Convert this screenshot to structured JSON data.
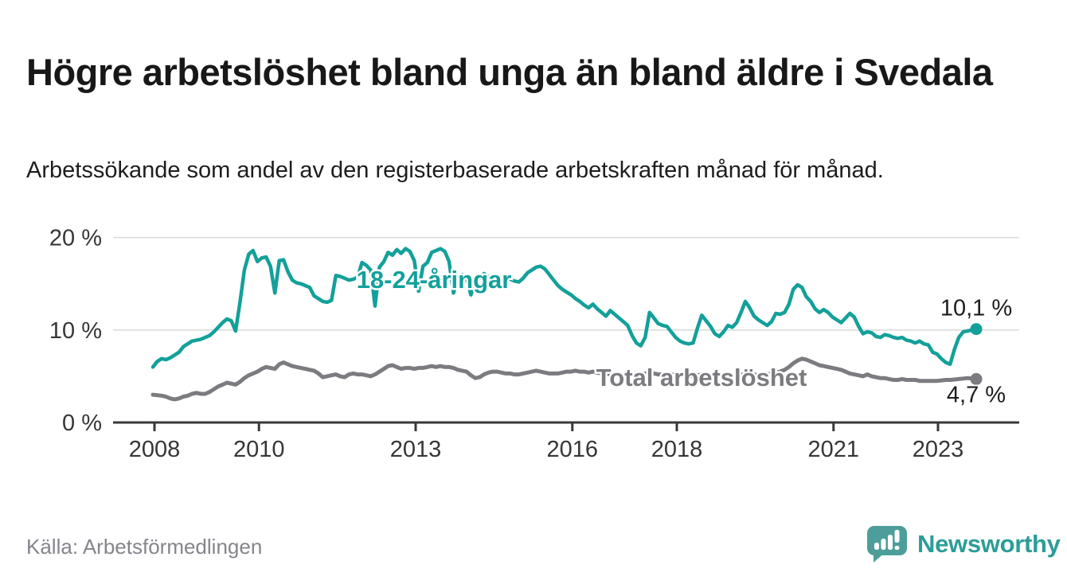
{
  "header": {
    "title": "Högre arbetslöshet bland unga än bland äldre i Svedala",
    "subtitle": "Arbetssökande som andel av den registerbaserade arbetskraften månad för månad."
  },
  "footer": {
    "source": "Källa: Arbetsförmedlingen",
    "brand_name": "Newsworthy",
    "brand_icon": "bar-chart-speech-bubble-icon"
  },
  "colors": {
    "youth_line": "#13a09a",
    "total_line": "#7b7b80",
    "axis": "#383838",
    "gridline": "#dbdbdb",
    "tick_label": "#363636",
    "value_label": "#1d1d1d",
    "logo_box": "#4d9e9b",
    "logo_text": "#2b9d98"
  },
  "chart_data": {
    "type": "line",
    "title": "Högre arbetslöshet bland unga än bland äldre i Svedala",
    "subtitle": "Arbetssökande som andel av den registerbaserade arbetskraften månad för månad.",
    "frequency": "monthly",
    "x_start": "2008-01",
    "x_end": "2023-10",
    "xlabel": "",
    "ylabel": "",
    "ylim": [
      0,
      21.5
    ],
    "grid": "horizontal",
    "legend_position": "inline-labels",
    "x_tick_years": [
      2008,
      2010,
      2013,
      2016,
      2018,
      2021,
      2023
    ],
    "y_ticks": [
      {
        "value": 0,
        "label": "0 %"
      },
      {
        "value": 10,
        "label": "10 %"
      },
      {
        "value": 20,
        "label": "20 %"
      }
    ],
    "y_gridlines": [
      10,
      20
    ],
    "series": [
      {
        "name": "18-24-åringar",
        "color": "#13a09a",
        "end_label": "10,1 %",
        "last_value": 10.1,
        "values": [
          6.0,
          6.6,
          6.9,
          6.8,
          7.0,
          7.3,
          7.6,
          8.2,
          8.5,
          8.8,
          8.9,
          9.0,
          9.2,
          9.4,
          9.8,
          10.3,
          10.8,
          11.2,
          11.0,
          9.9,
          13.0,
          16.5,
          18.2,
          18.6,
          17.4,
          17.8,
          17.9,
          16.9,
          14.0,
          17.5,
          17.6,
          16.3,
          15.4,
          15.1,
          15.0,
          14.8,
          14.6,
          13.7,
          13.4,
          13.1,
          13.0,
          13.2,
          15.9,
          15.8,
          15.6,
          15.4,
          15.5,
          15.7,
          17.3,
          17.0,
          16.5,
          12.6,
          16.8,
          17.4,
          18.4,
          18.1,
          18.7,
          18.3,
          18.8,
          18.5,
          17.5,
          14.2,
          16.9,
          17.3,
          18.4,
          18.6,
          18.8,
          18.5,
          17.4,
          14.0,
          15.6,
          16.0,
          15.6,
          13.8,
          15.2,
          15.6,
          16.1,
          15.8,
          15.5,
          14.8,
          15.6,
          15.8,
          15.5,
          15.3,
          15.2,
          15.6,
          16.2,
          16.5,
          16.8,
          16.9,
          16.6,
          16.0,
          15.4,
          14.8,
          14.4,
          14.1,
          13.8,
          13.4,
          13.1,
          12.7,
          12.4,
          12.8,
          12.3,
          11.9,
          11.5,
          12.1,
          11.7,
          11.3,
          10.9,
          10.5,
          9.4,
          8.6,
          8.3,
          9.2,
          11.9,
          11.3,
          10.7,
          10.5,
          10.4,
          9.8,
          9.2,
          8.8,
          8.6,
          8.5,
          8.6,
          10.2,
          11.6,
          11.0,
          10.4,
          9.6,
          9.3,
          9.8,
          10.5,
          10.3,
          10.8,
          11.9,
          13.1,
          12.4,
          11.5,
          11.1,
          10.8,
          10.5,
          10.9,
          11.8,
          11.7,
          11.9,
          12.8,
          14.4,
          14.9,
          14.6,
          13.6,
          13.1,
          12.3,
          11.9,
          12.2,
          11.9,
          11.4,
          11.1,
          10.8,
          11.3,
          11.8,
          11.4,
          10.4,
          9.6,
          9.8,
          9.7,
          9.3,
          9.2,
          9.5,
          9.4,
          9.2,
          9.1,
          9.2,
          8.9,
          8.8,
          8.6,
          8.8,
          8.5,
          8.4,
          7.6,
          7.4,
          6.9,
          6.5,
          6.3,
          7.9,
          9.2,
          9.8,
          9.9,
          10.0,
          10.1
        ]
      },
      {
        "name": "Total arbetslöshet",
        "color": "#7b7b80",
        "end_label": "4,7 %",
        "last_value": 4.7,
        "values": [
          3.0,
          2.95,
          2.9,
          2.8,
          2.6,
          2.5,
          2.6,
          2.8,
          2.9,
          3.1,
          3.2,
          3.1,
          3.1,
          3.3,
          3.6,
          3.9,
          4.1,
          4.3,
          4.2,
          4.1,
          4.4,
          4.8,
          5.1,
          5.3,
          5.5,
          5.8,
          6.0,
          5.9,
          5.8,
          6.3,
          6.5,
          6.3,
          6.1,
          6.0,
          5.9,
          5.8,
          5.7,
          5.6,
          5.3,
          4.9,
          5.0,
          5.1,
          5.2,
          5.0,
          4.9,
          5.2,
          5.3,
          5.2,
          5.2,
          5.1,
          5.0,
          5.2,
          5.5,
          5.8,
          6.1,
          6.2,
          6.0,
          5.8,
          5.9,
          5.9,
          5.8,
          5.9,
          5.9,
          6.0,
          6.1,
          6.0,
          6.1,
          6.0,
          6.0,
          5.9,
          5.7,
          5.6,
          5.5,
          5.1,
          4.8,
          4.9,
          5.2,
          5.4,
          5.5,
          5.5,
          5.4,
          5.3,
          5.3,
          5.2,
          5.2,
          5.3,
          5.4,
          5.5,
          5.6,
          5.5,
          5.4,
          5.3,
          5.3,
          5.3,
          5.4,
          5.5,
          5.5,
          5.6,
          5.5,
          5.5,
          5.4,
          5.5,
          5.4,
          5.3,
          5.2,
          5.3,
          5.3,
          5.2,
          5.2,
          5.1,
          5.2,
          5.3,
          5.2,
          5.3,
          5.4,
          5.3,
          5.2,
          5.2,
          5.3,
          5.2,
          5.2,
          5.1,
          5.0,
          5.1,
          5.0,
          5.1,
          5.2,
          5.1,
          5.0,
          5.0,
          5.1,
          5.0,
          5.1,
          5.0,
          5.1,
          5.2,
          5.2,
          5.1,
          5.2,
          5.1,
          5.1,
          5.2,
          5.3,
          5.4,
          5.5,
          5.7,
          6.0,
          6.4,
          6.7,
          6.9,
          6.8,
          6.6,
          6.4,
          6.2,
          6.1,
          6.0,
          5.9,
          5.8,
          5.7,
          5.5,
          5.3,
          5.2,
          5.1,
          5.0,
          5.2,
          5.0,
          4.9,
          4.8,
          4.8,
          4.7,
          4.6,
          4.6,
          4.7,
          4.6,
          4.6,
          4.6,
          4.5,
          4.5,
          4.5,
          4.5,
          4.5,
          4.55,
          4.6,
          4.6,
          4.65,
          4.7,
          4.75,
          4.8,
          4.75,
          4.7
        ]
      }
    ]
  }
}
